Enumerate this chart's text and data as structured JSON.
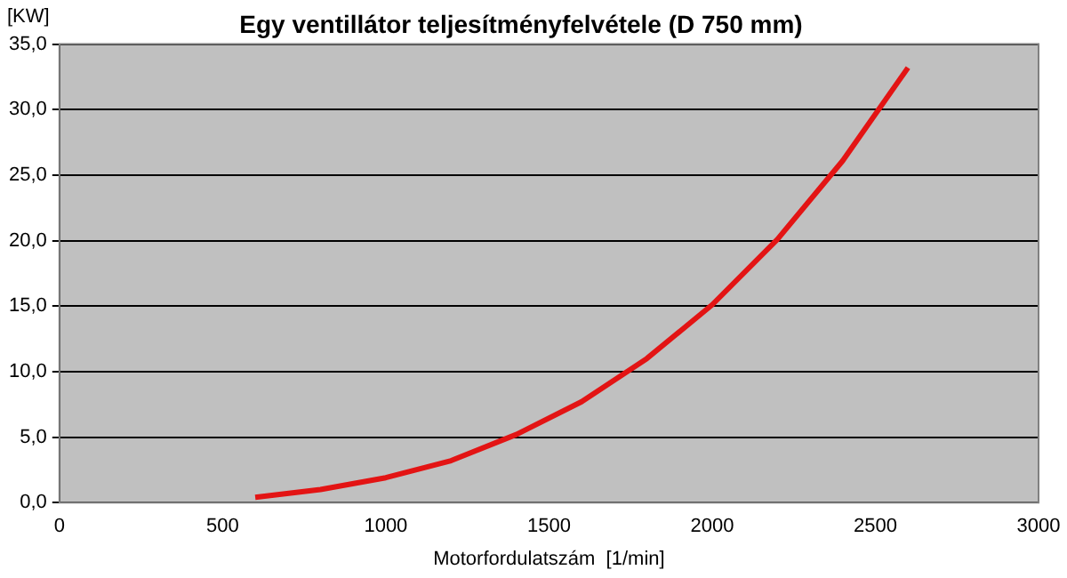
{
  "chart_data": {
    "type": "line",
    "title": "Egy ventillátor teljesítményfelvétele (D 750 mm)",
    "xlabel": "Motorfordulatszám  [1/min]",
    "ylabel": "[KW]",
    "x": [
      600,
      800,
      1000,
      1200,
      1400,
      1600,
      1800,
      2000,
      2200,
      2400,
      2600
    ],
    "series": [
      {
        "color": "#e31414",
        "values": [
          0.4,
          1.0,
          1.9,
          3.2,
          5.2,
          7.7,
          11.0,
          15.1,
          20.1,
          26.1,
          33.2
        ]
      }
    ],
    "xlim": [
      0,
      3000
    ],
    "xticks": [
      0,
      500,
      1000,
      1500,
      2000,
      2500,
      3000
    ],
    "ylim": [
      0,
      35
    ],
    "yticks": [
      {
        "value": 0,
        "label": "0,0"
      },
      {
        "value": 5,
        "label": "5,0"
      },
      {
        "value": 10,
        "label": "10,0"
      },
      {
        "value": 15,
        "label": "15,0"
      },
      {
        "value": 20,
        "label": "20,0"
      },
      {
        "value": 25,
        "label": "25,0"
      },
      {
        "value": 30,
        "label": "30,0"
      },
      {
        "value": 35,
        "label": "35,0"
      }
    ],
    "grid": "y",
    "legend": false,
    "marker": "none",
    "line_style": "solid"
  }
}
